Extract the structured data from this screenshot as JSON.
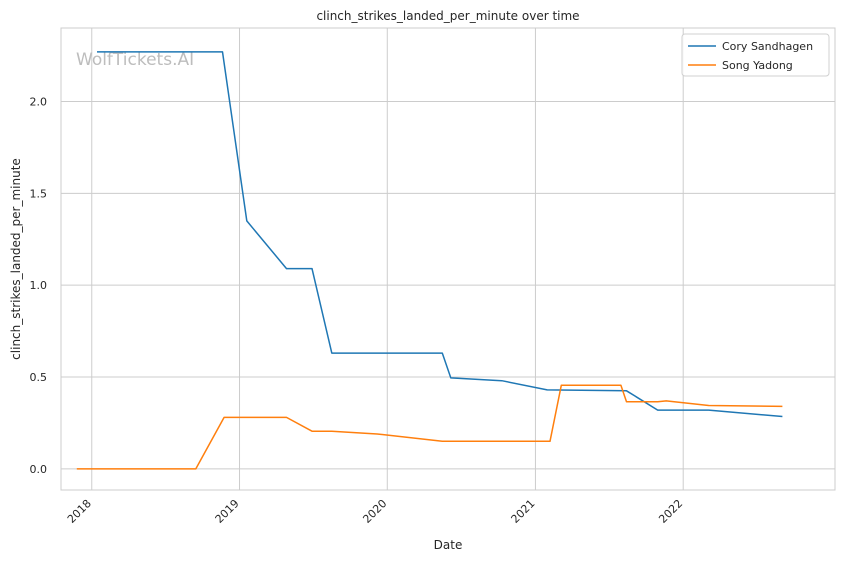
{
  "chart_data": {
    "type": "line",
    "title": "clinch_strikes_landed_per_minute over time",
    "xlabel": "Date",
    "ylabel": "clinch_strikes_landed_per_minute",
    "watermark": "WolfTickets.AI",
    "xlim": [
      "2017-10-17",
      "2023-01-11"
    ],
    "ylim": [
      -0.115,
      2.4
    ],
    "x_ticks": [
      "2018",
      "2019",
      "2020",
      "2021",
      "2022"
    ],
    "y_ticks": [
      "0.0",
      "0.5",
      "1.0",
      "1.5",
      "2.0"
    ],
    "y_tick_values": [
      0.0,
      0.5,
      1.0,
      1.5,
      2.0
    ],
    "grid": true,
    "legend_position": "top-right",
    "series": [
      {
        "name": "Cory Sandhagen",
        "color": "#1f77b4",
        "points": [
          [
            "2018-01-14",
            2.27
          ],
          [
            "2018-11-20",
            2.27
          ],
          [
            "2019-01-19",
            1.35
          ],
          [
            "2019-04-27",
            1.09
          ],
          [
            "2019-06-29",
            1.09
          ],
          [
            "2019-08-17",
            0.63
          ],
          [
            "2020-05-16",
            0.63
          ],
          [
            "2020-06-06",
            0.495
          ],
          [
            "2020-10-10",
            0.48
          ],
          [
            "2021-01-30",
            0.43
          ],
          [
            "2021-08-14",
            0.425
          ],
          [
            "2021-10-30",
            0.32
          ],
          [
            "2022-03-05",
            0.32
          ],
          [
            "2022-09-03",
            0.285
          ]
        ]
      },
      {
        "name": "Song Yadong",
        "color": "#ff7f0e",
        "points": [
          [
            "2017-11-25",
            0.0
          ],
          [
            "2018-09-15",
            0.0
          ],
          [
            "2018-11-24",
            0.28
          ],
          [
            "2019-04-27",
            0.28
          ],
          [
            "2019-06-29",
            0.205
          ],
          [
            "2019-08-17",
            0.205
          ],
          [
            "2019-12-07",
            0.19
          ],
          [
            "2020-05-16",
            0.15
          ],
          [
            "2021-02-06",
            0.15
          ],
          [
            "2021-03-06",
            0.455
          ],
          [
            "2021-07-31",
            0.455
          ],
          [
            "2021-08-14",
            0.365
          ],
          [
            "2021-10-30",
            0.365
          ],
          [
            "2021-11-20",
            0.37
          ],
          [
            "2022-03-05",
            0.345
          ],
          [
            "2022-09-03",
            0.34
          ]
        ]
      }
    ]
  }
}
